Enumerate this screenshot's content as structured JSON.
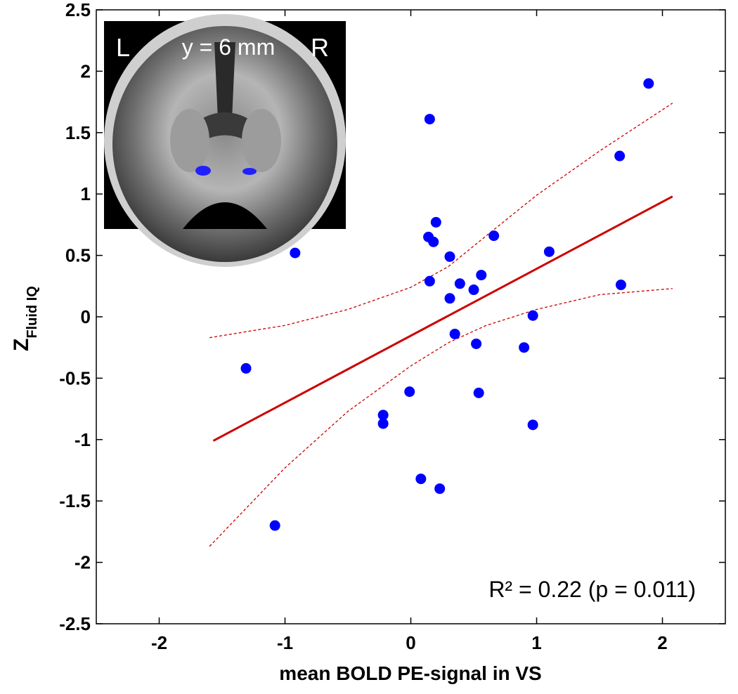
{
  "chart_data": {
    "type": "scatter",
    "xlabel": "mean BOLD PE-signal in VS",
    "ylabel": {
      "main": "Z",
      "sub": "Fluid IQ"
    },
    "annotation": "R² = 0.22 (p = 0.011)",
    "inset": {
      "left": "L",
      "center": "y = 6 mm",
      "right": "R"
    },
    "xlim": [
      -2.5,
      2.5
    ],
    "xticks": [
      -2,
      -1,
      0,
      1,
      2
    ],
    "ylim": [
      -2.5,
      2.5
    ],
    "yticks": [
      -2.5,
      -2,
      -1.5,
      -1,
      -0.5,
      0,
      0.5,
      1,
      1.5,
      2,
      2.5
    ],
    "grid": false,
    "series": [
      {
        "type": "scatter",
        "color": "#0000ff",
        "x": [
          1.89,
          0.15,
          1.66,
          0.2,
          0.14,
          0.18,
          0.66,
          1.1,
          -0.92,
          0.31,
          0.56,
          0.15,
          0.39,
          0.5,
          1.67,
          0.31,
          0.97,
          0.35,
          0.52,
          0.9,
          -1.31,
          -0.01,
          0.54,
          -0.22,
          -0.22,
          0.97,
          0.08,
          0.23,
          -1.08
        ],
        "values": [
          1.9,
          1.61,
          1.31,
          0.77,
          0.65,
          0.61,
          0.66,
          0.53,
          0.52,
          0.49,
          0.34,
          0.29,
          0.27,
          0.22,
          0.26,
          0.15,
          0.01,
          -0.14,
          -0.22,
          -0.25,
          -0.42,
          -0.61,
          -0.62,
          -0.8,
          -0.87,
          -0.88,
          -1.32,
          -1.4,
          -1.7
        ]
      },
      {
        "type": "line",
        "color": "#cc0000",
        "x": [
          -1.57,
          2.08
        ],
        "values": [
          -1.01,
          0.98
        ]
      },
      {
        "type": "dashed",
        "color": "#cc0000",
        "x": [
          -1.6,
          -1.0,
          -0.5,
          0,
          0.3,
          0.6,
          1.0,
          1.5,
          2.08
        ],
        "values": [
          -0.17,
          -0.07,
          0.06,
          0.24,
          0.41,
          0.66,
          0.99,
          1.35,
          1.74
        ]
      },
      {
        "type": "dashed",
        "color": "#cc0000",
        "x": [
          -1.6,
          -1.0,
          -0.5,
          0,
          0.3,
          0.6,
          1.0,
          1.5,
          2.08
        ],
        "values": [
          -1.87,
          -1.23,
          -0.77,
          -0.4,
          -0.21,
          -0.07,
          0.06,
          0.18,
          0.23
        ]
      }
    ]
  }
}
